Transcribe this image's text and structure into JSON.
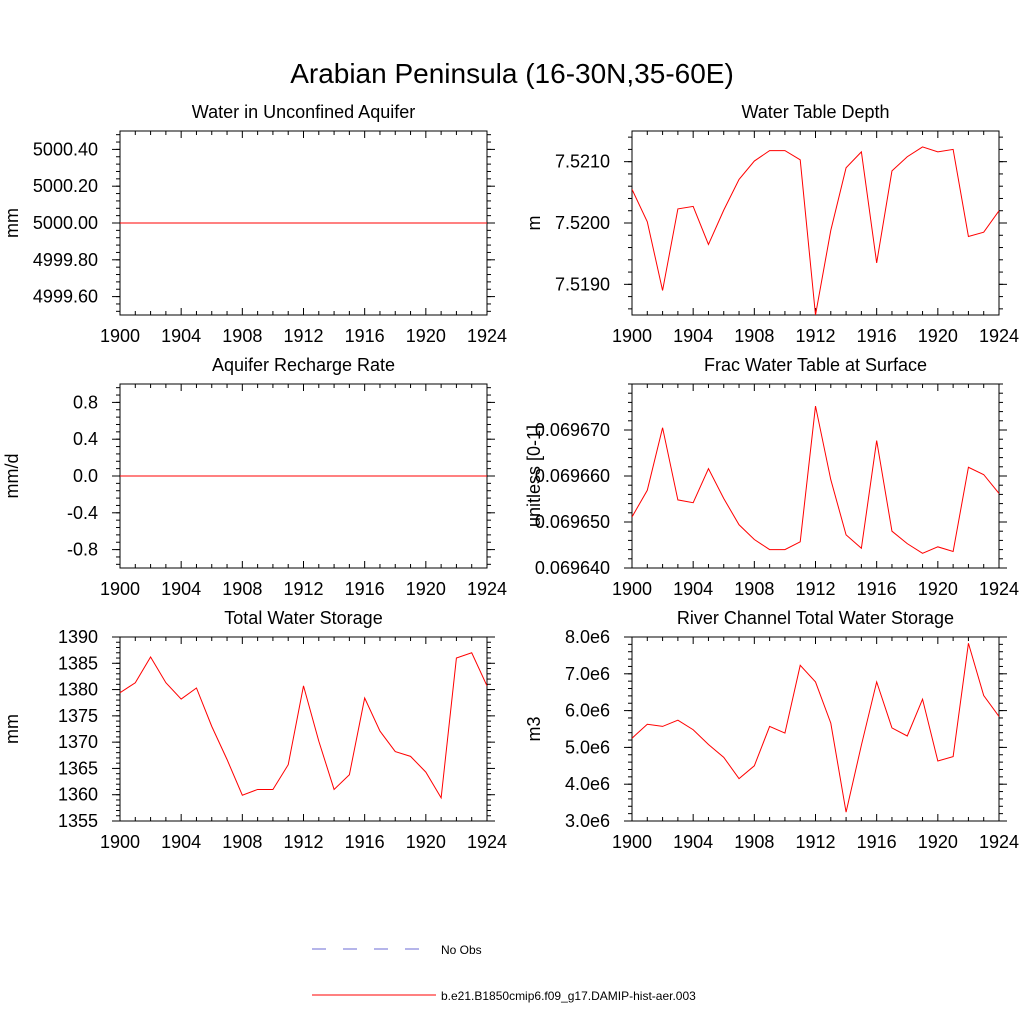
{
  "figure": {
    "title": "Arabian Peninsula (16-30N,35-60E)"
  },
  "colors": {
    "model_line": "#ff0000",
    "obs_line": "#6b6bd6",
    "axis": "#000000"
  },
  "legend": {
    "obs_label": "No Obs",
    "model_label": "b.e21.B1850cmip6.f09_g17.DAMIP-hist-aer.003"
  },
  "chart_data": [
    {
      "type": "line",
      "title": "Water in Unconfined Aquifer",
      "ylabel": "mm",
      "xlim": [
        1900,
        1924
      ],
      "ylim": [
        4999.5,
        5000.5
      ],
      "xticks": [
        "1900",
        "1904",
        "1908",
        "1912",
        "1916",
        "1920",
        "1924"
      ],
      "yticks": [
        4999.6,
        4999.8,
        5000.0,
        5000.2,
        5000.4
      ],
      "ytick_labels": [
        "4999.60",
        "4999.80",
        "5000.00",
        "5000.20",
        "5000.40"
      ],
      "x": [
        1900,
        1901,
        1902,
        1903,
        1904,
        1905,
        1906,
        1907,
        1908,
        1909,
        1910,
        1911,
        1912,
        1913,
        1914,
        1915,
        1916,
        1917,
        1918,
        1919,
        1920,
        1921,
        1922,
        1923,
        1924
      ],
      "series": [
        {
          "values": [
            5000,
            5000,
            5000,
            5000,
            5000,
            5000,
            5000,
            5000,
            5000,
            5000,
            5000,
            5000,
            5000,
            5000,
            5000,
            5000,
            5000,
            5000,
            5000,
            5000,
            5000,
            5000,
            5000,
            5000,
            5000
          ]
        }
      ]
    },
    {
      "type": "line",
      "title": "Water Table Depth",
      "ylabel": "m",
      "xlim": [
        1900,
        1924
      ],
      "ylim": [
        7.5185,
        7.5215
      ],
      "xticks": [
        "1900",
        "1904",
        "1908",
        "1912",
        "1916",
        "1920",
        "1924"
      ],
      "yticks": [
        7.519,
        7.52,
        7.521
      ],
      "ytick_labels": [
        "7.5190",
        "7.5200",
        "7.5210"
      ],
      "x": [
        1900,
        1901,
        1902,
        1903,
        1904,
        1905,
        1906,
        1907,
        1908,
        1909,
        1910,
        1911,
        1912,
        1913,
        1914,
        1915,
        1916,
        1917,
        1918,
        1919,
        1920,
        1921,
        1922,
        1923,
        1924
      ],
      "series": [
        {
          "values": [
            7.52055,
            7.52002,
            7.5189,
            7.52023,
            7.52027,
            7.51965,
            7.52021,
            7.52071,
            7.52101,
            7.52118,
            7.52118,
            7.52103,
            7.5185,
            7.51988,
            7.5209,
            7.52116,
            7.51935,
            7.52085,
            7.52108,
            7.52124,
            7.52116,
            7.5212,
            7.51978,
            7.51985,
            7.5202
          ]
        }
      ]
    },
    {
      "type": "line",
      "title": "Aquifer Recharge Rate",
      "ylabel": "mm/d",
      "xlim": [
        1900,
        1924
      ],
      "ylim": [
        -1.0,
        1.0
      ],
      "xticks": [
        "1900",
        "1904",
        "1908",
        "1912",
        "1916",
        "1920",
        "1924"
      ],
      "yticks": [
        -0.8,
        -0.4,
        0.0,
        0.4,
        0.8
      ],
      "ytick_labels": [
        "-0.8",
        "-0.4",
        "0.0",
        "0.4",
        "0.8"
      ],
      "x": [
        1900,
        1901,
        1902,
        1903,
        1904,
        1905,
        1906,
        1907,
        1908,
        1909,
        1910,
        1911,
        1912,
        1913,
        1914,
        1915,
        1916,
        1917,
        1918,
        1919,
        1920,
        1921,
        1922,
        1923,
        1924
      ],
      "series": [
        {
          "values": [
            0,
            0,
            0,
            0,
            0,
            0,
            0,
            0,
            0,
            0,
            0,
            0,
            0,
            0,
            0,
            0,
            0,
            0,
            0,
            0,
            0,
            0,
            0,
            0,
            0
          ]
        }
      ]
    },
    {
      "type": "line",
      "title": "Frac Water Table at Surface",
      "ylabel": "unitless [0-1]",
      "xlim": [
        1900,
        1924
      ],
      "ylim": [
        0.06964,
        0.06968
      ],
      "xticks": [
        "1900",
        "1904",
        "1908",
        "1912",
        "1916",
        "1920",
        "1924"
      ],
      "yticks": [
        0.06964,
        0.06965,
        0.06966,
        0.06967
      ],
      "ytick_labels": [
        "0.069640",
        "0.069650",
        "0.069660",
        "0.069670"
      ],
      "x": [
        1900,
        1901,
        1902,
        1903,
        1904,
        1905,
        1906,
        1907,
        1908,
        1909,
        1910,
        1911,
        1912,
        1913,
        1914,
        1915,
        1916,
        1917,
        1918,
        1919,
        1920,
        1921,
        1922,
        1923,
        1924
      ],
      "series": [
        {
          "values": [
            0.0696511,
            0.0696569,
            0.0696705,
            0.0696548,
            0.0696542,
            0.0696616,
            0.0696551,
            0.0696494,
            0.0696462,
            0.069644,
            0.069644,
            0.0696457,
            0.0696752,
            0.0696592,
            0.0696472,
            0.0696443,
            0.0696677,
            0.069648,
            0.0696453,
            0.0696432,
            0.0696446,
            0.0696436,
            0.0696619,
            0.0696603,
            0.0696562
          ]
        }
      ]
    },
    {
      "type": "line",
      "title": "Total Water Storage",
      "ylabel": "mm",
      "xlim": [
        1900,
        1924
      ],
      "ylim": [
        1355,
        1390
      ],
      "xticks": [
        "1900",
        "1904",
        "1908",
        "1912",
        "1916",
        "1920",
        "1924"
      ],
      "yticks": [
        1355,
        1360,
        1365,
        1370,
        1375,
        1380,
        1385,
        1390
      ],
      "ytick_labels": [
        "1355",
        "1360",
        "1365",
        "1370",
        "1375",
        "1380",
        "1385",
        "1390"
      ],
      "x": [
        1900,
        1901,
        1902,
        1903,
        1904,
        1905,
        1906,
        1907,
        1908,
        1909,
        1910,
        1911,
        1912,
        1913,
        1914,
        1915,
        1916,
        1917,
        1918,
        1919,
        1920,
        1921,
        1922,
        1923,
        1924
      ],
      "series": [
        {
          "values": [
            1379.4,
            1381.3,
            1386.2,
            1381.3,
            1378.2,
            1380.3,
            1373.0,
            1366.7,
            1359.9,
            1361.0,
            1361.0,
            1365.7,
            1380.7,
            1370.2,
            1361.0,
            1363.8,
            1378.4,
            1372.1,
            1368.2,
            1367.3,
            1364.3,
            1359.4,
            1386.0,
            1387.0,
            1380.7
          ]
        }
      ]
    },
    {
      "type": "line",
      "title": "River Channel Total Water Storage",
      "ylabel": "m3",
      "xlim": [
        1900,
        1924
      ],
      "ylim": [
        3000000,
        8000000
      ],
      "xticks": [
        "1900",
        "1904",
        "1908",
        "1912",
        "1916",
        "1920",
        "1924"
      ],
      "yticks": [
        3000000,
        4000000,
        5000000,
        6000000,
        7000000,
        8000000
      ],
      "ytick_labels": [
        "3.0e6",
        "4.0e6",
        "5.0e6",
        "6.0e6",
        "7.0e6",
        "8.0e6"
      ],
      "x": [
        1900,
        1901,
        1902,
        1903,
        1904,
        1905,
        1906,
        1907,
        1908,
        1909,
        1910,
        1911,
        1912,
        1913,
        1914,
        1915,
        1916,
        1917,
        1918,
        1919,
        1920,
        1921,
        1922,
        1923,
        1924
      ],
      "series": [
        {
          "values": [
            5250000,
            5630000,
            5570000,
            5740000,
            5480000,
            5080000,
            4730000,
            4150000,
            4500000,
            5570000,
            5390000,
            7230000,
            6780000,
            5660000,
            3240000,
            5060000,
            6780000,
            5530000,
            5310000,
            6310000,
            4630000,
            4750000,
            7830000,
            6410000,
            5840000
          ]
        }
      ]
    }
  ]
}
